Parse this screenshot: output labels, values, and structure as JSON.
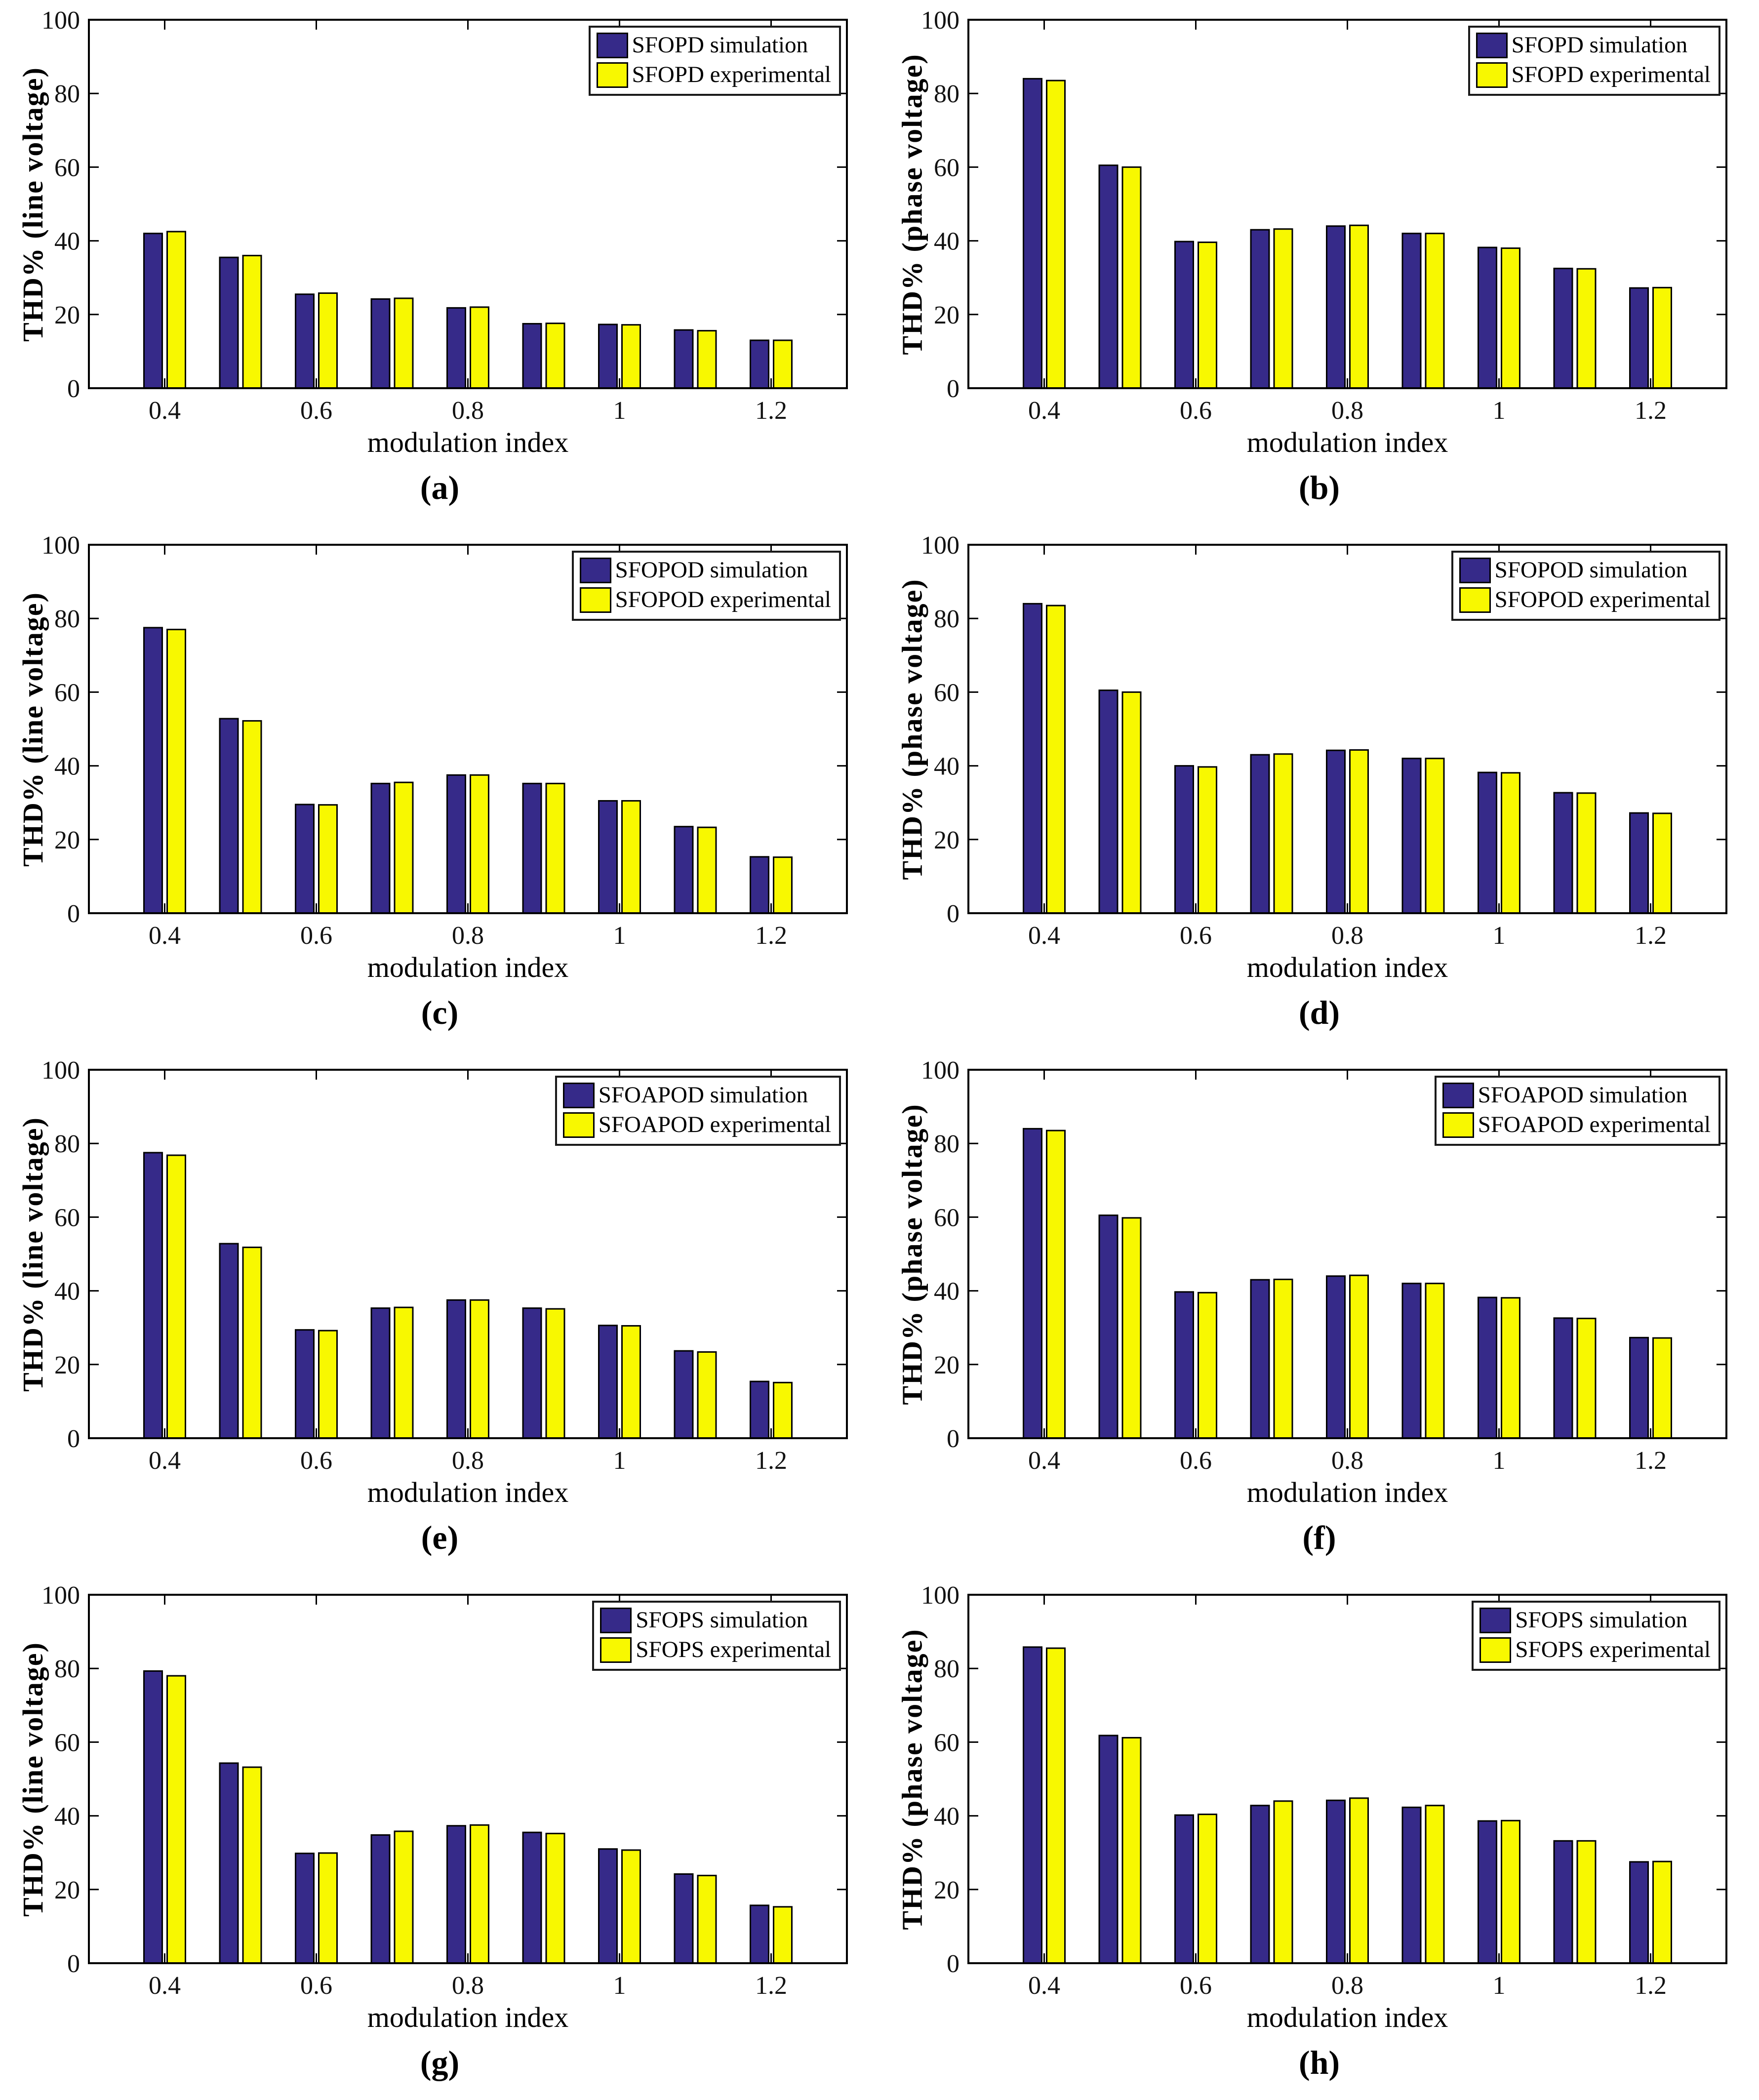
{
  "accent_colors": {
    "simulation_bar": "#362a89",
    "experimental_bar": "#f8f800",
    "bar_edge": "#000000",
    "axis": "#000000"
  },
  "chart_data": [
    {
      "type": "bar",
      "panel": "(a)",
      "scheme": "SFOPD",
      "voltage": "line",
      "xlabel": "modulation index",
      "ylabel": "THD% (line voltage)",
      "x": [
        0.4,
        0.5,
        0.6,
        0.7,
        0.8,
        0.9,
        1.0,
        1.1,
        1.2
      ],
      "xticks": [
        {
          "index": 0,
          "label": "0.4"
        },
        {
          "index": 2,
          "label": "0.6"
        },
        {
          "index": 4,
          "label": "0.8"
        },
        {
          "index": 6,
          "label": "1"
        },
        {
          "index": 8,
          "label": "1.2"
        }
      ],
      "yticks": [
        0,
        20,
        40,
        60,
        80,
        100
      ],
      "ylim": [
        0,
        100
      ],
      "legend_position": "top-right",
      "series": [
        {
          "name": "SFOPD simulation",
          "color": "#362a89",
          "values": [
            42,
            35.5,
            25.5,
            24.2,
            21.8,
            17.5,
            17.3,
            15.8,
            13
          ]
        },
        {
          "name": "SFOPD experimental",
          "color": "#f8f800",
          "values": [
            42.5,
            36,
            25.8,
            24.4,
            22,
            17.6,
            17.2,
            15.6,
            13
          ]
        }
      ]
    },
    {
      "type": "bar",
      "panel": "(b)",
      "scheme": "SFOPD",
      "voltage": "phase",
      "xlabel": "modulation index",
      "ylabel": "THD% (phase voltage)",
      "x": [
        0.4,
        0.5,
        0.6,
        0.7,
        0.8,
        0.9,
        1.0,
        1.1,
        1.2
      ],
      "xticks": [
        {
          "index": 0,
          "label": "0.4"
        },
        {
          "index": 2,
          "label": "0.6"
        },
        {
          "index": 4,
          "label": "0.8"
        },
        {
          "index": 6,
          "label": "1"
        },
        {
          "index": 8,
          "label": "1.2"
        }
      ],
      "yticks": [
        0,
        20,
        40,
        60,
        80,
        100
      ],
      "ylim": [
        0,
        100
      ],
      "legend_position": "top-right",
      "series": [
        {
          "name": "SFOPD simulation",
          "color": "#362a89",
          "values": [
            84,
            60.5,
            39.8,
            43,
            44,
            42,
            38.2,
            32.5,
            27.2
          ]
        },
        {
          "name": "SFOPD experimental",
          "color": "#f8f800",
          "values": [
            83.5,
            60,
            39.6,
            43.2,
            44.2,
            42,
            38,
            32.4,
            27.3
          ]
        }
      ]
    },
    {
      "type": "bar",
      "panel": "(c)",
      "scheme": "SFOPOD",
      "voltage": "line",
      "xlabel": "modulation index",
      "ylabel": "THD% (line voltage)",
      "x": [
        0.4,
        0.5,
        0.6,
        0.7,
        0.8,
        0.9,
        1.0,
        1.1,
        1.2
      ],
      "xticks": [
        {
          "index": 0,
          "label": "0.4"
        },
        {
          "index": 2,
          "label": "0.6"
        },
        {
          "index": 4,
          "label": "0.8"
        },
        {
          "index": 6,
          "label": "1"
        },
        {
          "index": 8,
          "label": "1.2"
        }
      ],
      "yticks": [
        0,
        20,
        40,
        60,
        80,
        100
      ],
      "ylim": [
        0,
        100
      ],
      "legend_position": "top-right",
      "series": [
        {
          "name": "SFOPOD simulation",
          "color": "#362a89",
          "values": [
            77.5,
            52.8,
            29.5,
            35.2,
            37.5,
            35.2,
            30.5,
            23.5,
            15.3
          ]
        },
        {
          "name": "SFOPOD experimental",
          "color": "#f8f800",
          "values": [
            77,
            52.2,
            29.4,
            35.5,
            37.5,
            35.2,
            30.5,
            23.3,
            15.2
          ]
        }
      ]
    },
    {
      "type": "bar",
      "panel": "(d)",
      "scheme": "SFOPOD",
      "voltage": "phase",
      "xlabel": "modulation index",
      "ylabel": "THD% (phase voltage)",
      "x": [
        0.4,
        0.5,
        0.6,
        0.7,
        0.8,
        0.9,
        1.0,
        1.1,
        1.2
      ],
      "xticks": [
        {
          "index": 0,
          "label": "0.4"
        },
        {
          "index": 2,
          "label": "0.6"
        },
        {
          "index": 4,
          "label": "0.8"
        },
        {
          "index": 6,
          "label": "1"
        },
        {
          "index": 8,
          "label": "1.2"
        }
      ],
      "yticks": [
        0,
        20,
        40,
        60,
        80,
        100
      ],
      "ylim": [
        0,
        100
      ],
      "legend_position": "top-right",
      "series": [
        {
          "name": "SFOPOD simulation",
          "color": "#362a89",
          "values": [
            84,
            60.5,
            40,
            43,
            44.2,
            42,
            38.2,
            32.7,
            27.2
          ]
        },
        {
          "name": "SFOPOD experimental",
          "color": "#f8f800",
          "values": [
            83.5,
            60,
            39.7,
            43.2,
            44.3,
            42,
            38.1,
            32.6,
            27.1
          ]
        }
      ]
    },
    {
      "type": "bar",
      "panel": "(e)",
      "scheme": "SFOAPOD",
      "voltage": "line",
      "xlabel": "modulation index",
      "ylabel": "THD% (line voltage)",
      "x": [
        0.4,
        0.5,
        0.6,
        0.7,
        0.8,
        0.9,
        1.0,
        1.1,
        1.2
      ],
      "xticks": [
        {
          "index": 0,
          "label": "0.4"
        },
        {
          "index": 2,
          "label": "0.6"
        },
        {
          "index": 4,
          "label": "0.8"
        },
        {
          "index": 6,
          "label": "1"
        },
        {
          "index": 8,
          "label": "1.2"
        }
      ],
      "yticks": [
        0,
        20,
        40,
        60,
        80,
        100
      ],
      "ylim": [
        0,
        100
      ],
      "legend_position": "top-right",
      "series": [
        {
          "name": "SFOAPOD simulation",
          "color": "#362a89",
          "values": [
            77.5,
            52.8,
            29.4,
            35.3,
            37.5,
            35.3,
            30.6,
            23.7,
            15.4
          ]
        },
        {
          "name": "SFOAPOD experimental",
          "color": "#f8f800",
          "values": [
            76.8,
            51.8,
            29.2,
            35.5,
            37.5,
            35.1,
            30.5,
            23.4,
            15.1
          ]
        }
      ]
    },
    {
      "type": "bar",
      "panel": "(f)",
      "scheme": "SFOAPOD",
      "voltage": "phase",
      "xlabel": "modulation index",
      "ylabel": "THD% (phase voltage)",
      "x": [
        0.4,
        0.5,
        0.6,
        0.7,
        0.8,
        0.9,
        1.0,
        1.1,
        1.2
      ],
      "xticks": [
        {
          "index": 0,
          "label": "0.4"
        },
        {
          "index": 2,
          "label": "0.6"
        },
        {
          "index": 4,
          "label": "0.8"
        },
        {
          "index": 6,
          "label": "1"
        },
        {
          "index": 8,
          "label": "1.2"
        }
      ],
      "yticks": [
        0,
        20,
        40,
        60,
        80,
        100
      ],
      "ylim": [
        0,
        100
      ],
      "legend_position": "top-right",
      "series": [
        {
          "name": "SFOAPOD simulation",
          "color": "#362a89",
          "values": [
            84,
            60.5,
            39.7,
            43,
            44,
            42,
            38.2,
            32.6,
            27.3
          ]
        },
        {
          "name": "SFOAPOD experimental",
          "color": "#f8f800",
          "values": [
            83.5,
            59.8,
            39.5,
            43.1,
            44.2,
            42,
            38.1,
            32.5,
            27.2
          ]
        }
      ]
    },
    {
      "type": "bar",
      "panel": "(g)",
      "scheme": "SFOPS",
      "voltage": "line",
      "xlabel": "modulation index",
      "ylabel": "THD% (line voltage)",
      "x": [
        0.4,
        0.5,
        0.6,
        0.7,
        0.8,
        0.9,
        1.0,
        1.1,
        1.2
      ],
      "xticks": [
        {
          "index": 0,
          "label": "0.4"
        },
        {
          "index": 2,
          "label": "0.6"
        },
        {
          "index": 4,
          "label": "0.8"
        },
        {
          "index": 6,
          "label": "1"
        },
        {
          "index": 8,
          "label": "1.2"
        }
      ],
      "yticks": [
        0,
        20,
        40,
        60,
        80,
        100
      ],
      "ylim": [
        0,
        100
      ],
      "legend_position": "top-right",
      "series": [
        {
          "name": "SFOPS simulation",
          "color": "#362a89",
          "values": [
            79.3,
            54.3,
            29.8,
            34.8,
            37.3,
            35.5,
            31,
            24.2,
            15.7
          ]
        },
        {
          "name": "SFOPS experimental",
          "color": "#f8f800",
          "values": [
            78,
            53.2,
            29.9,
            35.8,
            37.5,
            35.2,
            30.7,
            23.8,
            15.3
          ]
        }
      ]
    },
    {
      "type": "bar",
      "panel": "(h)",
      "scheme": "SFOPS",
      "voltage": "phase",
      "xlabel": "modulation index",
      "ylabel": "THD% (phase voltage)",
      "x": [
        0.4,
        0.5,
        0.6,
        0.7,
        0.8,
        0.9,
        1.0,
        1.1,
        1.2
      ],
      "xticks": [
        {
          "index": 0,
          "label": "0.4"
        },
        {
          "index": 2,
          "label": "0.6"
        },
        {
          "index": 4,
          "label": "0.8"
        },
        {
          "index": 6,
          "label": "1"
        },
        {
          "index": 8,
          "label": "1.2"
        }
      ],
      "yticks": [
        0,
        20,
        40,
        60,
        80,
        100
      ],
      "ylim": [
        0,
        100
      ],
      "legend_position": "top-right",
      "series": [
        {
          "name": "SFOPS simulation",
          "color": "#362a89",
          "values": [
            85.8,
            61.8,
            40.2,
            42.8,
            44.2,
            42.3,
            38.6,
            33.2,
            27.5
          ]
        },
        {
          "name": "SFOPS experimental",
          "color": "#f8f800",
          "values": [
            85.5,
            61.2,
            40.4,
            44,
            44.8,
            42.8,
            38.7,
            33.2,
            27.6
          ]
        }
      ]
    }
  ]
}
